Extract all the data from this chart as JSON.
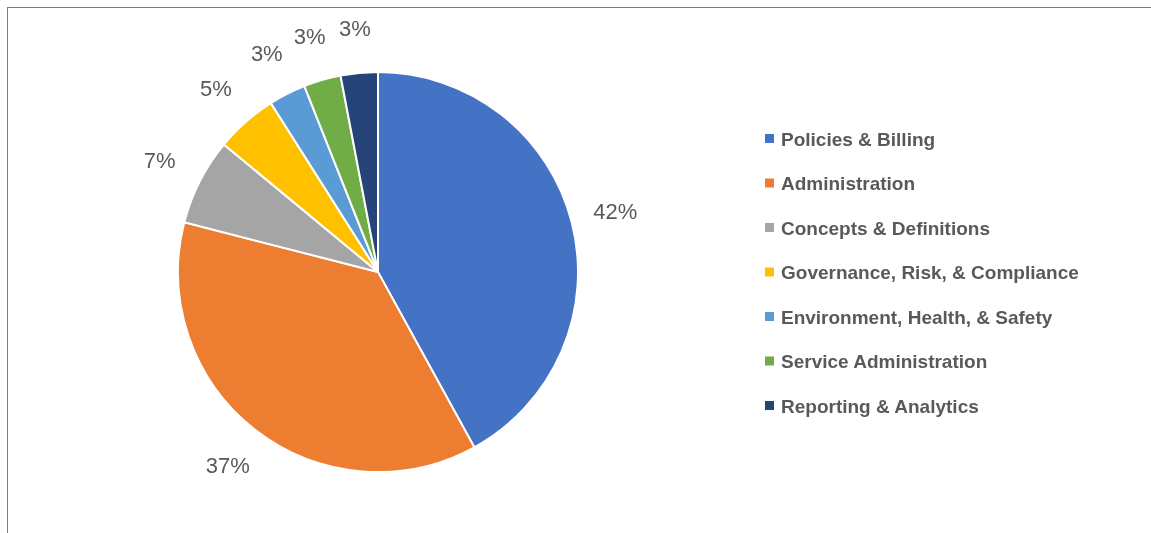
{
  "chart_data": {
    "type": "pie",
    "categories": [
      "Policies & Billing",
      "Administration",
      "Concepts & Definitions",
      "Governance, Risk, & Compliance",
      "Environment, Health, & Safety",
      "Service Administration",
      "Reporting & Analytics"
    ],
    "values": [
      42,
      37,
      7,
      5,
      3,
      3,
      3
    ],
    "colors": [
      "#4472c4",
      "#ed7d31",
      "#a5a5a5",
      "#ffc000",
      "#5b9bd5",
      "#70ad47",
      "#264478"
    ],
    "value_labels": [
      "42%",
      "37%",
      "7%",
      "5%",
      "3%",
      "3%",
      "3%"
    ],
    "legend": "right"
  }
}
